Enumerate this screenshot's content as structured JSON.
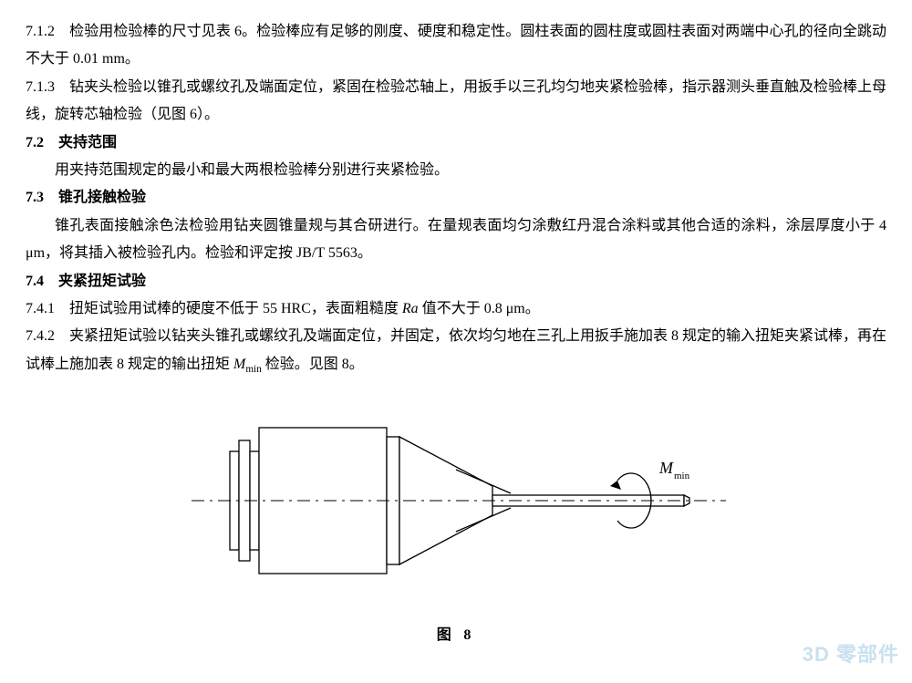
{
  "paragraphs": {
    "p712": "7.1.2　检验用检验棒的尺寸见表 6。检验棒应有足够的刚度、硬度和稳定性。圆柱表面的圆柱度或圆柱表面对两端中心孔的径向全跳动不大于 0.01 mm。",
    "p713": "7.1.3　钻夹头检验以锥孔或螺纹孔及端面定位，紧固在检验芯轴上，用扳手以三孔均匀地夹紧检验棒，指示器测头垂直触及检验棒上母线，旋转芯轴检验（见图 6）。",
    "h72": "7.2　夹持范围",
    "p72": "用夹持范围规定的最小和最大两根检验棒分别进行夹紧检验。",
    "h73": "7.3　锥孔接触检验",
    "p73": "锥孔表面接触涂色法检验用钻夹圆锥量规与其合研进行。在量规表面均匀涂敷红丹混合涂料或其他合适的涂料，涂层厚度小于 4 μm，将其插入被检验孔内。检验和评定按 JB/T 5563。",
    "h74": "7.4　夹紧扭矩试验",
    "p741_a": "7.4.1　扭矩试验用试棒的硬度不低于 55 HRC，表面粗糙度 ",
    "p741_raL": "Ra",
    "p741_b": " 值不大于 0.8 μm。",
    "p742_a": "7.4.2　夹紧扭矩试验以钻夹头锥孔或螺纹孔及端面定位，并固定，依次均匀地在三孔上用扳手施加表 8 规定的输入扭矩夹紧试棒，再在试棒上施加表 8 规定的输出扭矩 ",
    "p742_M": "M",
    "p742_sub": "min",
    "p742_b": " 检验。见图 8。"
  },
  "figure": {
    "caption": "图 8",
    "label_M": "M",
    "label_sub": "min",
    "stroke": "#000000",
    "fill": "#ffffff",
    "stroke_width": 1.3,
    "centerline_dash": "14 6 3 6"
  },
  "watermark": {
    "en": "3D",
    "zh": "零部件",
    "color": "#9ec9e2"
  }
}
